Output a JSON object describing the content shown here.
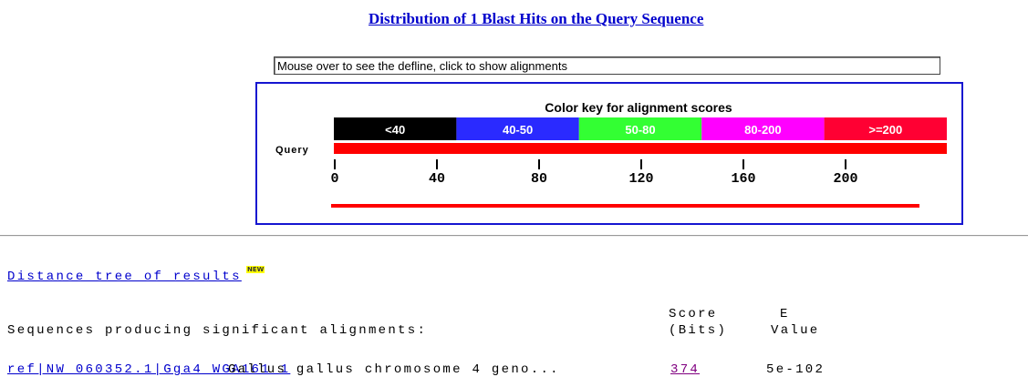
{
  "header": {
    "title": "Distribution of 1 Blast Hits on the Query Sequence",
    "mouseover": "Mouse over to see the defline, click to show alignments"
  },
  "color_key": {
    "title": "Color key for alignment scores",
    "query_label": "Query",
    "segments": [
      {
        "label": "<40",
        "color": "#000000"
      },
      {
        "label": "40-50",
        "color": "#2a2aff"
      },
      {
        "label": "50-80",
        "color": "#33ff33"
      },
      {
        "label": "80-200",
        "color": "#ff00ff"
      },
      {
        "label": ">=200",
        "color": "#ff0033"
      }
    ],
    "ruler_ticks": [
      0,
      40,
      80,
      120,
      160,
      200
    ]
  },
  "links": {
    "distance_tree": "Distance tree of results",
    "new_badge": "NEW"
  },
  "table": {
    "heading": "Sequences producing significant alignments:",
    "score_header": [
      "Score",
      "(Bits)"
    ],
    "e_header": [
      "E",
      "Value"
    ],
    "rows": [
      {
        "id": "ref|NW_060352.1|Gga4_WGA161_1",
        "description": "Gallus gallus chromosome 4 geno...",
        "score": "374",
        "evalue": "5e-102"
      }
    ]
  }
}
